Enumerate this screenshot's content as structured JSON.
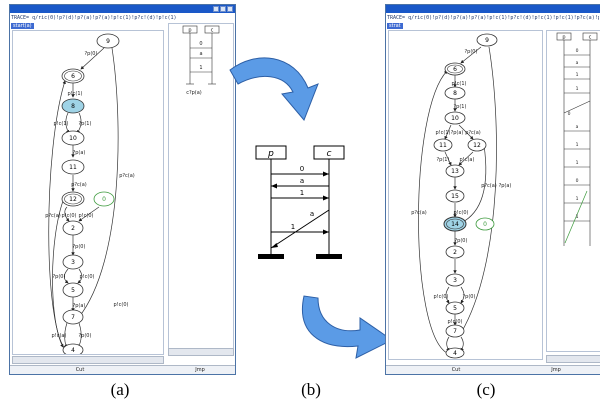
{
  "captions": [
    "(a)",
    "(b)",
    "(c)"
  ],
  "window_a": {
    "trace": "TRACE= q/ric(0)!p?(d)!p?(a)!p?(a)!p!c(1)!p?c!(d)!p!c(1)",
    "start_label": "start(a)",
    "cut_label": "Cut",
    "jump_label": "Jmp",
    "states": [
      "9",
      "6",
      "8",
      "10",
      "11",
      "12",
      "0",
      "2",
      "3",
      "4",
      "5",
      "7",
      "4"
    ],
    "edge_labels": [
      "?p(0)",
      "p!c(1)",
      "p!c(1)",
      "?p(1)",
      "?p(a)",
      "p?c(a)",
      "p?c(a)",
      "p!c(0)",
      "p!c(0)",
      "?p(0)",
      "?p(0)",
      "p!c(0)",
      "?p(a)",
      "p!c(a)",
      "?p(0)",
      "p!c(0)",
      "p?c(a)"
    ],
    "msc_headers": [
      "p",
      "c"
    ],
    "msc_labels": [
      "0",
      "a",
      "1"
    ],
    "msc_footer": "c?p(a)"
  },
  "window_c": {
    "trace": "TRACE= q/ric(0)!p?(d)!p?(a)!p?(a)!p!c(1)!p?c!(d)!p!c(1)!p!c(1)!p?c(a)!p!c(0)!p?(a)",
    "start_label": "strat",
    "cut_label": "Cut",
    "jump_label": "Jmp",
    "states": [
      "9",
      "6",
      "8",
      "10",
      "11",
      "12",
      "13",
      "15",
      "14",
      "0",
      "2",
      "3",
      "5",
      "6",
      "7",
      "4"
    ],
    "edge_labels": [
      "?p(0)",
      "p!c(1)",
      "?p(1)",
      "p!c(1)",
      "?p(a)",
      "p?c(a)",
      "?p(1)",
      "p!c(a)",
      "p?c(a)",
      "p!c(0)",
      "p?c(a)",
      "?p(0)",
      "p!c(0)",
      "?p(0)",
      "p!c(0)",
      "?p(a)"
    ],
    "msc_headers": [
      "p",
      "c"
    ],
    "msc_labels": [
      "0",
      "a",
      "1",
      "1",
      "0",
      "a",
      "1",
      "1",
      "0",
      "1",
      "1"
    ]
  },
  "msc_center": {
    "headers": [
      "p",
      "c"
    ],
    "messages": [
      "0",
      "a",
      "1",
      "a",
      "1"
    ]
  },
  "colors": {
    "highlight_fill": "#9fd3e6",
    "green_node": "#3c9a3c",
    "arrow_fill": "#5b9be6",
    "window_border": "#4c73a6",
    "title_bar": "#1a58c8"
  }
}
